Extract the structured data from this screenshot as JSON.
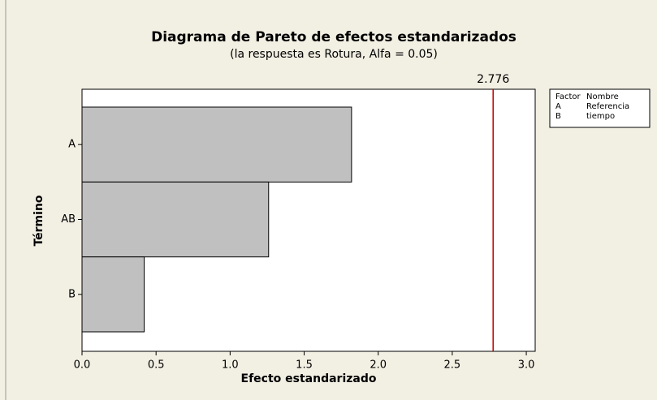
{
  "chart_data": {
    "type": "bar",
    "orientation": "horizontal",
    "title": "Diagrama de Pareto de efectos estandarizados",
    "subtitle": "(la respuesta es Rotura, Alfa =  0.05)",
    "xlabel": "Efecto estandarizado",
    "ylabel": "Término",
    "categories": [
      "A",
      "AB",
      "B"
    ],
    "values": [
      1.82,
      1.26,
      0.42
    ],
    "color": "#c0c0c0",
    "reference_line": {
      "value": 2.776,
      "color": "#c00000"
    },
    "xlim": [
      0,
      3.06
    ],
    "xticks": [
      {
        "value": 0,
        "label": "0.0"
      },
      0.5,
      {
        "value": 1,
        "label": "1.0"
      },
      1.5,
      {
        "value": 2,
        "label": "2.0"
      },
      2.5,
      {
        "value": 3,
        "label": "3.0"
      }
    ],
    "factor_table": {
      "headers": [
        "Factor",
        "Nombre"
      ],
      "rows": [
        [
          "A",
          "Referencia"
        ],
        [
          "B",
          "tiempo"
        ]
      ]
    }
  }
}
